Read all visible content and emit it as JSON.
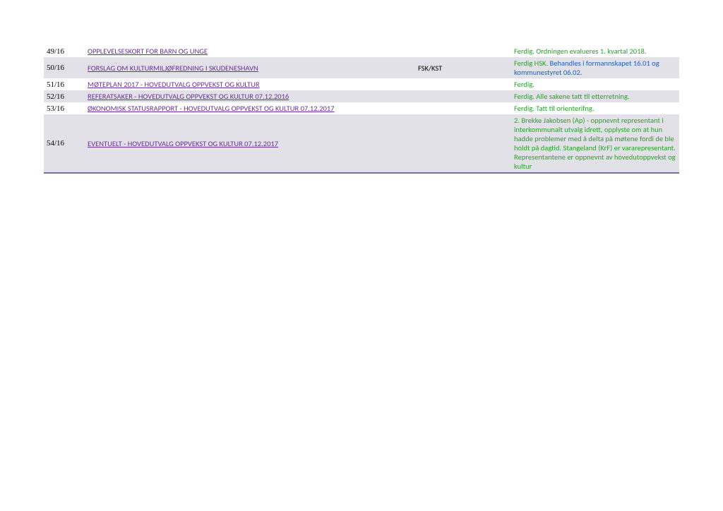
{
  "table": {
    "rows": [
      {
        "id": "49/16",
        "title": "OPPLEVELSESKORT FOR BARN OG UNGE",
        "note": "",
        "status_green": "Ferdig. Ordningen evalueres 1. kvartal 2018.",
        "status_blue": "",
        "alt": false,
        "last": false
      },
      {
        "id": "50/16",
        "title": "FORSLAG OM KULTURMILJØFREDNING I SKUDENESHAVN",
        "note": "FSK/KST",
        "status_green": "Ferdig HSK.",
        "status_blue": " Behandles i formannskapet 16.01 og kommunestyret 06.02.",
        "alt": true,
        "last": false
      },
      {
        "id": "51/16",
        "title": "MØTEPLAN 2017 - HOVEDUTVALG OPPVEKST OG KULTUR",
        "note": "",
        "status_green": "Ferdig.",
        "status_blue": "",
        "alt": false,
        "last": false
      },
      {
        "id": "52/16",
        "title": "REFERATSAKER - HOVEDUTVALG OPPVEKST OG KULTUR 07.12.2016",
        "note": "",
        "status_green": "Ferdig. Alle sakene tatt til etterretning.",
        "status_blue": "",
        "alt": true,
        "last": false
      },
      {
        "id": "53/16",
        "title": "ØKONOMISK STATUSRAPPORT - HOVEDUTVALG OPPVEKST OG KULTUR 07.12.2017",
        "note": "",
        "status_green": "Ferdig. Tatt til orienterifng.",
        "status_blue": "",
        "alt": false,
        "last": false
      },
      {
        "id": "54/16",
        "title": "EVENTUELT - HOVEDUTVALG OPPVEKST OG KULTUR 07.12.2017",
        "note": "",
        "status_green": "2. Brekke Jakobsen (Ap) - oppnevnt  representant i interkommunalt utvalg idrett, opplyste om at hun hadde problemer med å delta på møtene fordi de ble holdt på dagtid. Stangeland (KrF) er vararepresentant. Representantene er oppnevnt av hovedutoppvekst og kultur",
        "status_blue": "",
        "alt": true,
        "last": true
      }
    ]
  },
  "styling": {
    "page_bg": "#ffffff",
    "alt_row_bg": "#e2e1e8",
    "link_color": "#6a2e9b",
    "status_green_color": "#28a428",
    "status_blue_color": "#1f5fbf",
    "bottom_border_color": "#7a6fa8",
    "font_size_pt": 8
  }
}
